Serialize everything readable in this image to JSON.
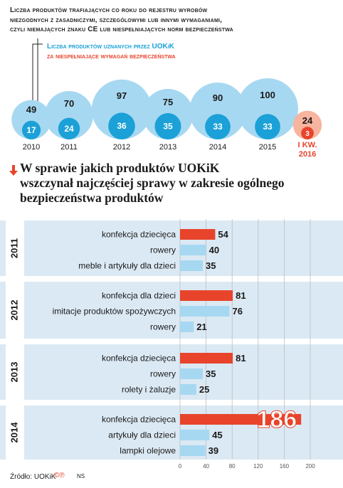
{
  "intro": {
    "line1": "Liczba produktów trafiających co roku do rejestru wyrobów",
    "line2": "niezgodnych z zasadniczymi, szczególowymi lub innymi wymaganiami,",
    "line3": "czyli niemających znaku CE lub niespełniających norm bezpieczeństwa"
  },
  "legend": {
    "blue": "Liczba produktów uznanych przez UOKiK",
    "red": "za niespełniające wymagań bezpieczeństwa"
  },
  "headline": {
    "line1": "W sprawie jakich produktów UOKiK",
    "line2": "wszczynał najczęściej sprawy w zakresie ogólnego",
    "line3": "bezpieczeństwa produktów"
  },
  "footer": {
    "source": "Źródło: UOKiK",
    "credit": "©℗",
    "initials": "NS"
  },
  "colors": {
    "blue": "#1ba1d7",
    "light_blue": "#a7d8f1",
    "red": "#e8442c",
    "light_red": "#f7b49f",
    "band": "#dbe9f4"
  },
  "chart_data": [
    {
      "type": "bubble",
      "periods": [
        "2010",
        "2011",
        "2012",
        "2013",
        "2014",
        "2015",
        "I KW. 2016"
      ],
      "series": [
        {
          "name": "Liczba produktów trafiających co roku do rejestru wyrobów",
          "values": [
            49,
            70,
            97,
            75,
            90,
            100,
            24
          ]
        },
        {
          "name": "Liczba produktów uznanych przez UOKiK za niespełniające wymagań bezpieczeństwa",
          "values": [
            17,
            24,
            36,
            35,
            33,
            33,
            3
          ]
        }
      ]
    },
    {
      "type": "bar",
      "orientation": "horizontal",
      "xlim": [
        0,
        200
      ],
      "xticks": [
        0,
        40,
        80,
        120,
        160,
        200
      ],
      "groups": [
        {
          "year": "2011",
          "items": [
            {
              "label": "konfekcja dziecięca",
              "value": 54,
              "highlight": true
            },
            {
              "label": "rowery",
              "value": 40,
              "highlight": false
            },
            {
              "label": "meble i artykuły dla dzieci",
              "value": 35,
              "highlight": false
            }
          ]
        },
        {
          "year": "2012",
          "items": [
            {
              "label": "konfekcja dla dzieci",
              "value": 81,
              "highlight": true
            },
            {
              "label": "imitacje produktów spożywczych",
              "value": 76,
              "highlight": false
            },
            {
              "label": "rowery",
              "value": 21,
              "highlight": false
            }
          ]
        },
        {
          "year": "2013",
          "items": [
            {
              "label": "konfekcja dziecięca",
              "value": 81,
              "highlight": true
            },
            {
              "label": "rowery",
              "value": 35,
              "highlight": false
            },
            {
              "label": "rolety i żaluzje",
              "value": 25,
              "highlight": false
            }
          ]
        },
        {
          "year": "2014",
          "items": [
            {
              "label": "konfekcja dziecięca",
              "value": 186,
              "highlight": true
            },
            {
              "label": "artykuły dla dzieci",
              "value": 45,
              "highlight": false
            },
            {
              "label": "lampki olejowe",
              "value": 39,
              "highlight": false
            }
          ]
        }
      ]
    }
  ]
}
